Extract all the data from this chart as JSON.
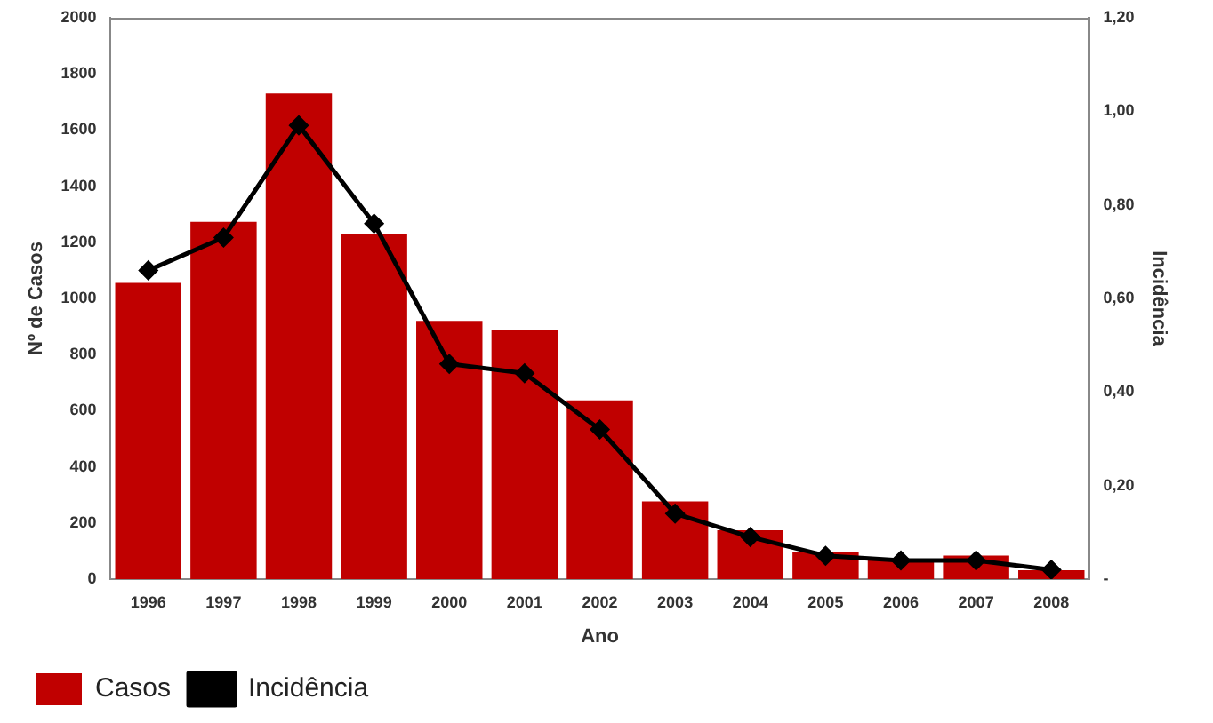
{
  "chart_data": {
    "type": "bar",
    "xlabel": "Ano",
    "ylabel": "Nº de Casos",
    "y2label": "Incidência",
    "categories": [
      "1996",
      "1997",
      "1998",
      "1999",
      "2000",
      "2001",
      "2002",
      "2003",
      "2004",
      "2005",
      "2006",
      "2007",
      "2008"
    ],
    "series": [
      {
        "name": "Casos",
        "color": "#c00000",
        "values": [
          1055,
          1273,
          1730,
          1228,
          920,
          887,
          637,
          277,
          174,
          96,
          70,
          84,
          32
        ]
      },
      {
        "name": "Incidência",
        "type": "line",
        "axis": "y2",
        "color": "#000000",
        "marker": "diamond",
        "values": [
          0.66,
          0.73,
          0.97,
          0.76,
          0.46,
          0.44,
          0.32,
          0.14,
          0.09,
          0.05,
          0.04,
          0.04,
          0.02
        ]
      }
    ],
    "ylim": [
      0,
      2000
    ],
    "yticks": [
      0,
      200,
      400,
      600,
      800,
      1000,
      1200,
      1400,
      1600,
      1800,
      2000
    ],
    "y2lim": [
      0,
      1.2
    ],
    "y2ticks": [
      {
        "value": 0,
        "label": "-"
      },
      {
        "value": 0.2,
        "label": "0,20"
      },
      {
        "value": 0.4,
        "label": "0,40"
      },
      {
        "value": 0.6,
        "label": "0,60"
      },
      {
        "value": 0.8,
        "label": "0,80"
      },
      {
        "value": 1,
        "label": "1,00"
      },
      {
        "value": 1.2,
        "label": "1,20"
      }
    ],
    "grid": false,
    "legend": "bottom left"
  }
}
